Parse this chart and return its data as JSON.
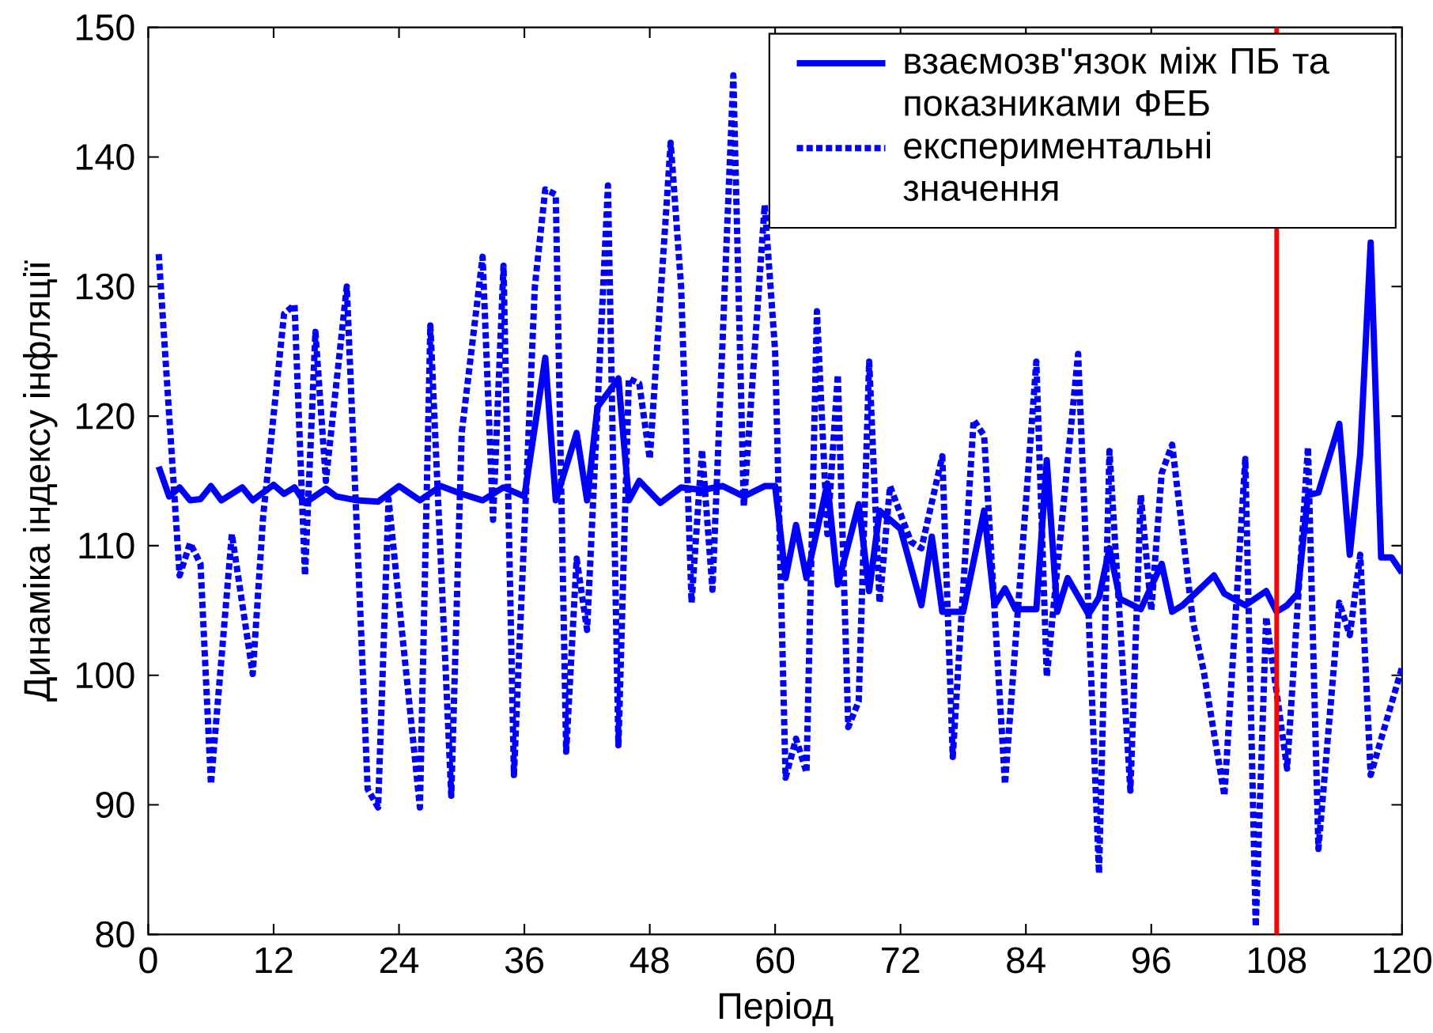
{
  "chart_data": {
    "type": "line",
    "xlabel": "Період",
    "ylabel": "Динаміка індексу інфляції",
    "xlim": [
      0,
      120
    ],
    "ylim": [
      80,
      150
    ],
    "xticks": [
      0,
      12,
      24,
      36,
      48,
      60,
      72,
      84,
      96,
      108,
      120
    ],
    "yticks": [
      80,
      90,
      100,
      110,
      120,
      130,
      140,
      150
    ],
    "legend": "top right",
    "ref_lines": [
      {
        "axis": "x",
        "value": 108,
        "color": "#ff0000"
      }
    ],
    "series": [
      {
        "name": "взаємозв\"язок між ПБ та показниками ФЕБ",
        "color": "#0000ff",
        "line_style": "solid",
        "x": [
          1,
          2,
          3,
          4,
          5,
          6,
          7,
          9,
          10,
          12,
          13,
          14,
          15,
          17,
          18,
          20,
          22,
          24,
          26,
          28,
          30,
          32,
          34,
          36,
          38,
          39,
          41,
          42,
          43,
          45,
          46,
          47,
          49,
          51,
          53,
          55,
          57,
          59,
          60,
          61,
          62,
          63,
          65,
          66,
          68,
          69,
          70,
          72,
          74,
          75,
          76,
          78,
          80,
          81,
          82,
          83,
          85,
          86,
          87,
          88,
          90,
          91,
          92,
          93,
          95,
          97,
          98,
          99,
          102,
          103,
          105,
          107,
          108,
          109,
          110,
          111,
          112,
          114,
          115,
          116,
          117,
          118,
          119,
          120
        ],
        "values": [
          116.1,
          113.8,
          114.5,
          113.5,
          113.6,
          114.6,
          113.5,
          114.5,
          113.5,
          114.7,
          114,
          114.5,
          113.3,
          114.4,
          113.8,
          113.5,
          113.4,
          114.6,
          113.5,
          114.6,
          114,
          113.5,
          114.5,
          113.8,
          124.5,
          113.5,
          118.7,
          113.5,
          120.7,
          122.9,
          113.5,
          115,
          113.3,
          114.5,
          114.3,
          114.6,
          113.8,
          114.6,
          114.6,
          107.5,
          111.6,
          107.5,
          114.8,
          107,
          113.2,
          106.5,
          112.7,
          111.3,
          105.4,
          110.7,
          104.9,
          104.9,
          112.7,
          105.4,
          106.7,
          105.1,
          105.1,
          116.6,
          104.9,
          107.5,
          104.7,
          106,
          109.8,
          105.9,
          105.1,
          108.6,
          104.9,
          105.4,
          107.7,
          106.3,
          105.4,
          106.5,
          104.9,
          105.4,
          106.3,
          113.9,
          114.1,
          119.4,
          109.3,
          117.1,
          133.4,
          109.1,
          109.1,
          107.9
        ]
      },
      {
        "name": "експериментальні значення",
        "color": "#0000ff",
        "line_style": "dotted",
        "x": [
          1,
          3,
          4,
          5,
          6,
          8,
          10,
          11,
          13,
          14,
          15,
          16,
          17,
          19,
          21,
          22,
          23,
          26,
          27,
          29,
          30,
          32,
          33,
          34,
          35,
          37,
          38,
          39,
          40,
          41,
          42,
          44,
          45,
          46,
          47,
          48,
          50,
          51,
          52,
          53,
          54,
          56,
          57,
          59,
          60,
          61,
          62,
          63,
          64,
          65,
          66,
          67,
          68,
          69,
          70,
          71,
          73,
          74,
          76,
          77,
          79,
          80,
          82,
          85,
          86,
          89,
          91,
          92,
          94,
          95,
          96,
          97,
          98,
          100,
          101,
          103,
          105,
          106,
          107,
          109,
          111,
          112,
          114,
          115,
          116,
          117,
          120
        ],
        "values": [
          132.5,
          107.7,
          110.2,
          108.6,
          91.6,
          110.9,
          100.1,
          112.3,
          127.9,
          128.6,
          107.7,
          126.5,
          115,
          130,
          91.2,
          89.8,
          113.6,
          89.8,
          127,
          90.7,
          118.7,
          132.3,
          112,
          131.6,
          92.3,
          130,
          137.5,
          137.1,
          94.1,
          109,
          103.5,
          137.8,
          94.6,
          122.9,
          122.5,
          116.7,
          141.1,
          130,
          105.6,
          117.4,
          106.6,
          146.3,
          113,
          136.3,
          125,
          92.1,
          95.1,
          92.5,
          128.1,
          110.9,
          123.2,
          96,
          98,
          124.2,
          105.6,
          114.6,
          110.3,
          109.8,
          116.9,
          93.7,
          119.7,
          118.5,
          91.6,
          124.2,
          99.9,
          124.8,
          84.7,
          117.3,
          91.1,
          113.9,
          105,
          115.6,
          117.8,
          104.1,
          100.4,
          90.7,
          116.7,
          80.6,
          104.5,
          92.8,
          117.6,
          86.6,
          105.6,
          103.1,
          109.3,
          92.3,
          100.6
        ]
      }
    ]
  }
}
